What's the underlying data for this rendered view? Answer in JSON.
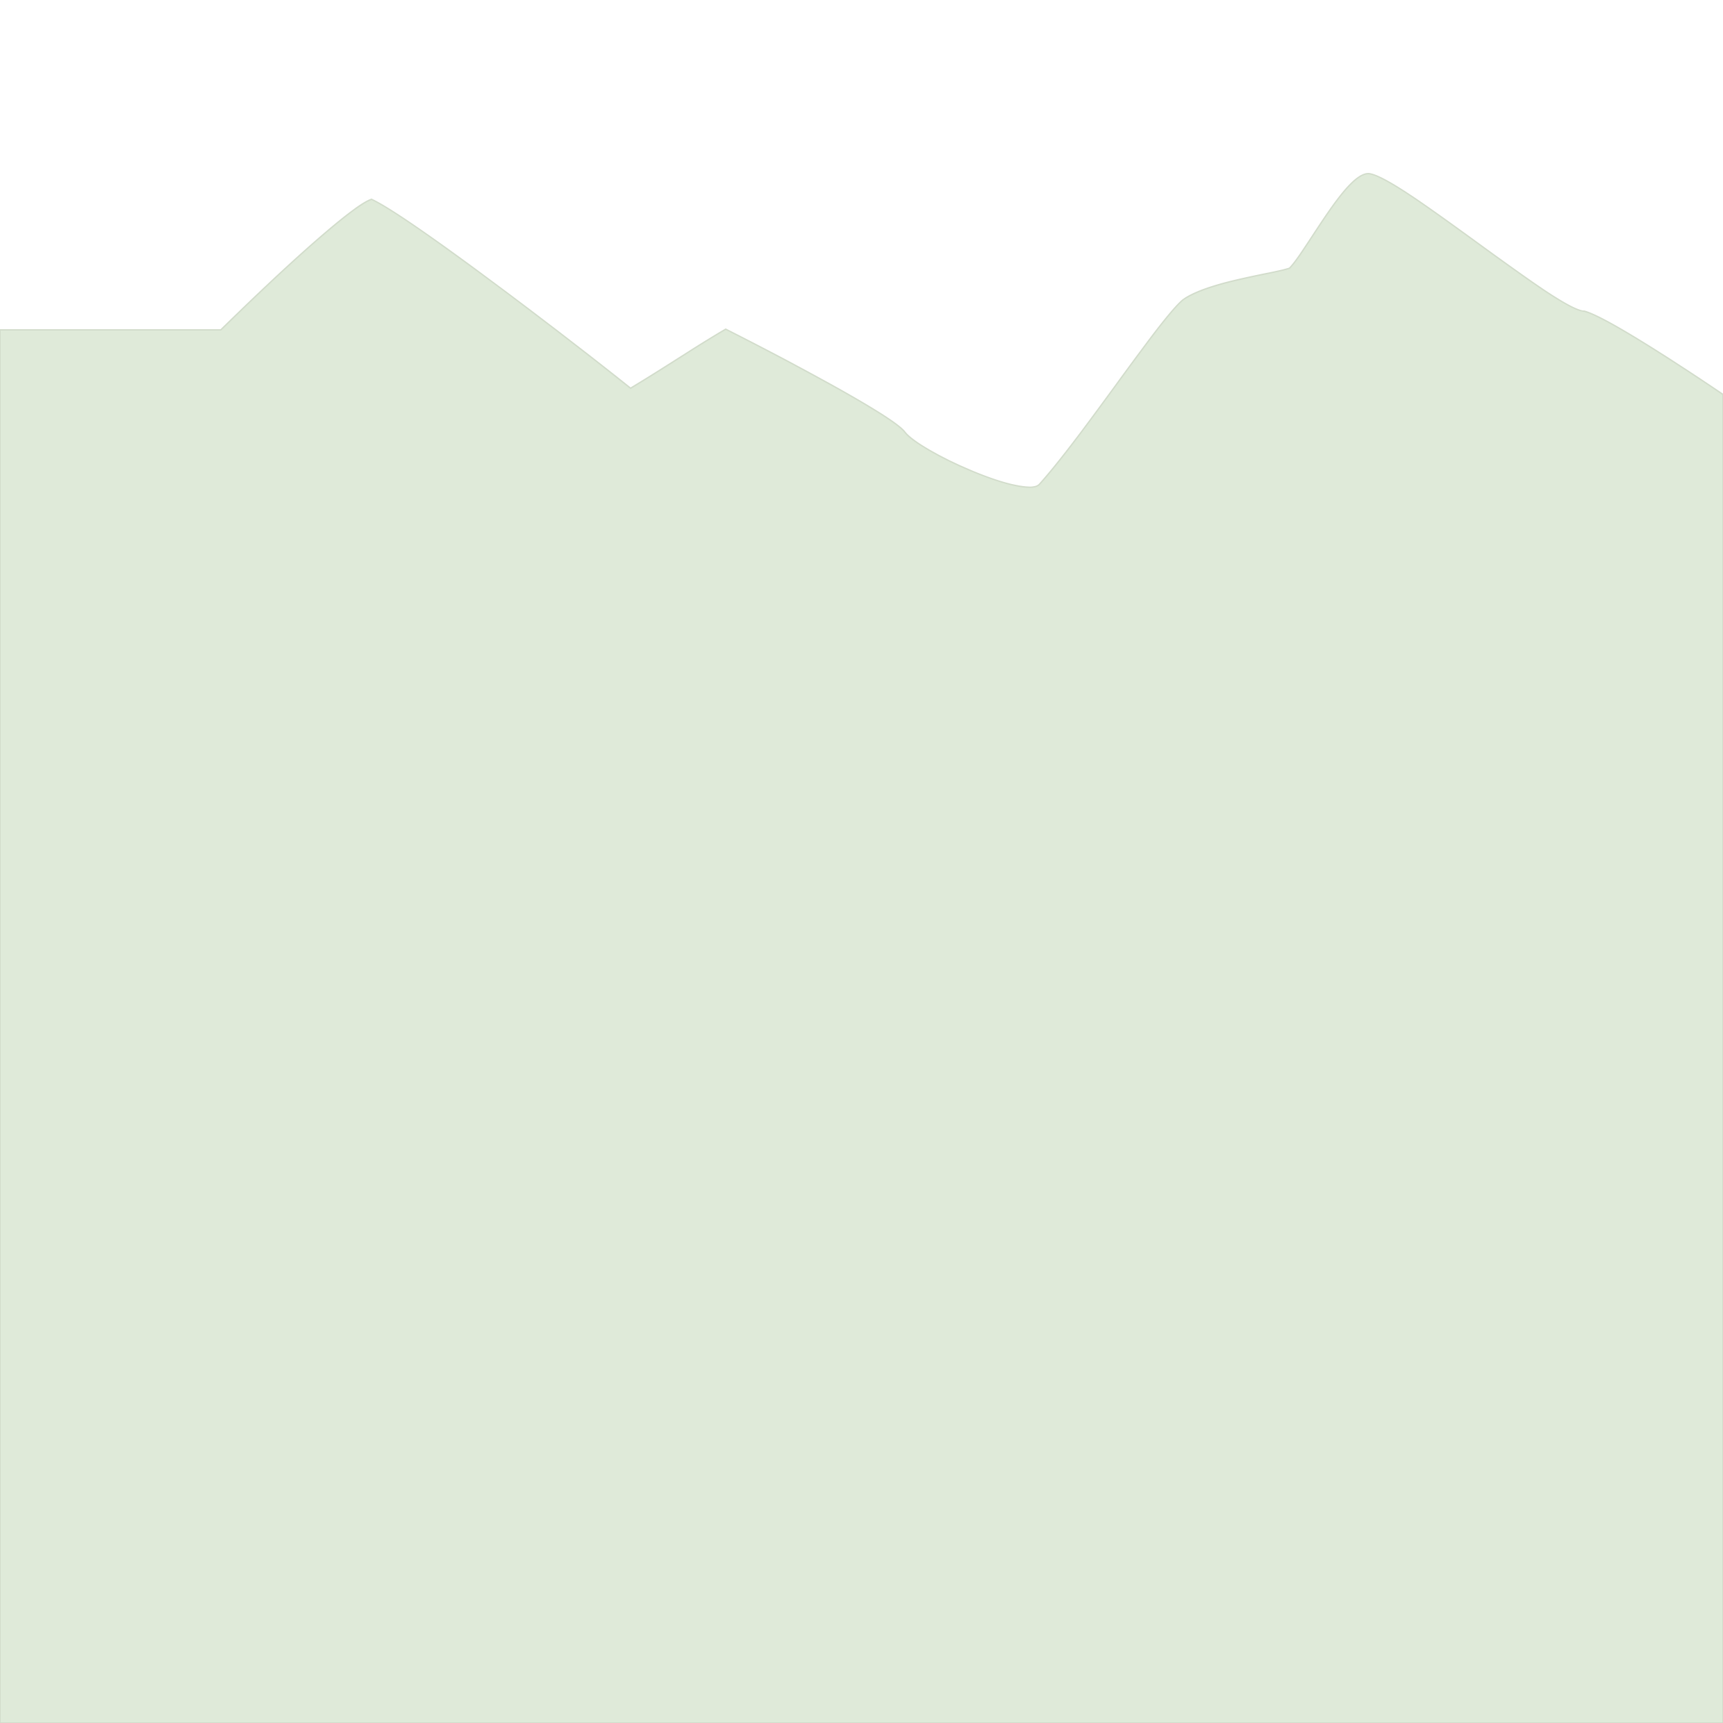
{
  "background_color": "#ffffff",
  "silhouette": {
    "shape": "mountain-range-silhouette",
    "fill": "#dfead9",
    "stroke": "#d2dccb"
  }
}
